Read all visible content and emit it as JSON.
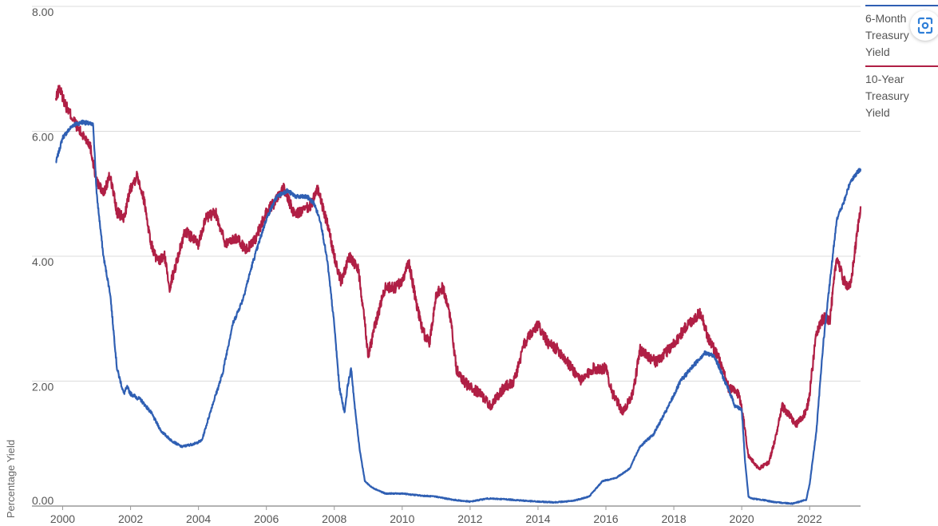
{
  "chart_data": {
    "type": "line",
    "title": "",
    "xlabel": "",
    "ylabel": "Percentage Yield",
    "xlim": [
      1999.8,
      2023.5
    ],
    "ylim": [
      0,
      8
    ],
    "yticks": [
      "0.00",
      "2.00",
      "4.00",
      "6.00",
      "8.00"
    ],
    "xticks": [
      "2000",
      "2002",
      "2004",
      "2006",
      "2008",
      "2010",
      "2012",
      "2014",
      "2016",
      "2018",
      "2020",
      "2022"
    ],
    "grid": true,
    "legend_position": "right",
    "series": [
      {
        "name": "6-Month Treasury Yield",
        "color": "#2f5fb3",
        "x": [
          1999.8,
          2000.0,
          2000.3,
          2000.6,
          2000.9,
          2001.0,
          2001.2,
          2001.4,
          2001.6,
          2001.8,
          2001.9,
          2002.0,
          2002.3,
          2002.6,
          2002.9,
          2003.0,
          2003.2,
          2003.5,
          2003.9,
          2004.1,
          2004.4,
          2004.7,
          2005.0,
          2005.3,
          2005.6,
          2006.0,
          2006.3,
          2006.6,
          2006.9,
          2007.2,
          2007.4,
          2007.6,
          2007.8,
          2007.9,
          2008.0,
          2008.15,
          2008.3,
          2008.4,
          2008.5,
          2008.6,
          2008.75,
          2008.9,
          2009.1,
          2009.5,
          2010.0,
          2010.5,
          2011.0,
          2011.5,
          2012.0,
          2012.5,
          2013.0,
          2013.5,
          2014.0,
          2014.5,
          2015.0,
          2015.5,
          2015.9,
          2016.3,
          2016.7,
          2017.0,
          2017.4,
          2017.8,
          2018.2,
          2018.5,
          2018.9,
          2019.2,
          2019.5,
          2019.7,
          2019.8,
          2020.0,
          2020.1,
          2020.2,
          2020.3,
          2020.6,
          2021.0,
          2021.5,
          2021.9,
          2022.0,
          2022.2,
          2022.4,
          2022.6,
          2022.8,
          2023.0,
          2023.2,
          2023.5
        ],
        "values": [
          5.5,
          5.9,
          6.1,
          6.15,
          6.1,
          5.0,
          4.0,
          3.4,
          2.2,
          1.8,
          1.9,
          1.8,
          1.7,
          1.5,
          1.2,
          1.15,
          1.05,
          0.95,
          1.0,
          1.05,
          1.6,
          2.1,
          2.9,
          3.3,
          3.9,
          4.6,
          4.95,
          5.05,
          4.95,
          4.95,
          4.85,
          4.55,
          3.9,
          3.4,
          2.9,
          1.9,
          1.5,
          1.95,
          2.2,
          1.6,
          0.9,
          0.4,
          0.3,
          0.2,
          0.2,
          0.17,
          0.15,
          0.1,
          0.07,
          0.12,
          0.11,
          0.09,
          0.07,
          0.06,
          0.08,
          0.15,
          0.4,
          0.45,
          0.6,
          0.95,
          1.15,
          1.55,
          2.0,
          2.2,
          2.45,
          2.4,
          2.0,
          1.75,
          1.6,
          1.55,
          0.7,
          0.15,
          0.12,
          0.1,
          0.06,
          0.04,
          0.1,
          0.35,
          1.2,
          2.6,
          3.6,
          4.6,
          4.85,
          5.2,
          5.4
        ]
      },
      {
        "name": "10-Year Treasury Yield",
        "color": "#b01f45",
        "x": [
          1999.8,
          1999.9,
          2000.1,
          2000.3,
          2000.5,
          2000.8,
          2001.0,
          2001.2,
          2001.4,
          2001.6,
          2001.8,
          2002.0,
          2002.2,
          2002.4,
          2002.6,
          2002.8,
          2003.0,
          2003.15,
          2003.3,
          2003.6,
          2004.0,
          2004.2,
          2004.5,
          2004.8,
          2005.1,
          2005.4,
          2005.7,
          2006.0,
          2006.3,
          2006.5,
          2006.8,
          2007.0,
          2007.3,
          2007.5,
          2007.8,
          2008.0,
          2008.2,
          2008.45,
          2008.7,
          2008.85,
          2009.0,
          2009.2,
          2009.5,
          2009.8,
          2010.0,
          2010.2,
          2010.4,
          2010.6,
          2010.8,
          2011.0,
          2011.2,
          2011.4,
          2011.6,
          2011.8,
          2012.0,
          2012.3,
          2012.6,
          2013.0,
          2013.3,
          2013.6,
          2014.0,
          2014.3,
          2014.6,
          2015.0,
          2015.3,
          2015.6,
          2016.0,
          2016.2,
          2016.5,
          2016.8,
          2017.0,
          2017.5,
          2018.0,
          2018.4,
          2018.8,
          2019.0,
          2019.3,
          2019.6,
          2019.9,
          2020.0,
          2020.2,
          2020.5,
          2020.8,
          2021.0,
          2021.2,
          2021.6,
          2021.9,
          2022.0,
          2022.2,
          2022.4,
          2022.6,
          2022.8,
          2023.0,
          2023.2,
          2023.5
        ],
        "values": [
          6.5,
          6.7,
          6.4,
          6.2,
          6.0,
          5.8,
          5.2,
          5.0,
          5.3,
          4.7,
          4.6,
          5.1,
          5.3,
          4.9,
          4.2,
          3.9,
          4.0,
          3.5,
          3.8,
          4.4,
          4.2,
          4.6,
          4.7,
          4.2,
          4.3,
          4.1,
          4.3,
          4.7,
          4.9,
          5.1,
          4.7,
          4.7,
          4.8,
          5.1,
          4.5,
          4.0,
          3.6,
          4.0,
          3.8,
          3.2,
          2.4,
          2.9,
          3.5,
          3.5,
          3.6,
          3.9,
          3.3,
          2.8,
          2.6,
          3.4,
          3.5,
          3.1,
          2.2,
          2.0,
          1.9,
          1.8,
          1.6,
          1.9,
          2.0,
          2.6,
          2.9,
          2.6,
          2.5,
          2.2,
          2.0,
          2.2,
          2.2,
          1.8,
          1.5,
          1.8,
          2.5,
          2.3,
          2.6,
          2.9,
          3.1,
          2.7,
          2.4,
          1.9,
          1.8,
          1.6,
          0.8,
          0.6,
          0.7,
          1.1,
          1.6,
          1.3,
          1.5,
          1.8,
          2.8,
          3.0,
          3.0,
          4.0,
          3.6,
          3.5,
          4.8
        ]
      }
    ]
  },
  "ui": {
    "scan_icon": "scan-lens-icon",
    "accent": "#2f7fd8"
  }
}
